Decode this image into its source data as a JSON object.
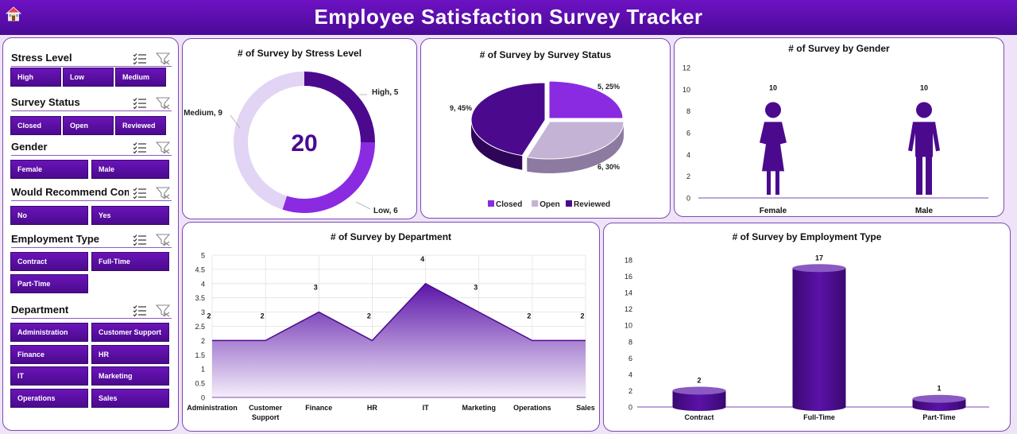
{
  "header": {
    "title": "Employee Satisfaction Survey Tracker"
  },
  "slicers": [
    {
      "title": "Stress Level",
      "items": [
        "High",
        "Low",
        "Medium"
      ]
    },
    {
      "title": "Survey Status",
      "items": [
        "Closed",
        "Open",
        "Reviewed"
      ]
    },
    {
      "title": "Gender",
      "items": [
        "Female",
        "Male"
      ]
    },
    {
      "title": "Would Recommend Com...",
      "items": [
        "No",
        "Yes"
      ]
    },
    {
      "title": "Employment Type",
      "items": [
        "Contract",
        "Full-Time",
        "Part-Time"
      ]
    },
    {
      "title": "Department",
      "items": [
        "Administration",
        "Customer Support",
        "Finance",
        "HR",
        "IT",
        "Marketing",
        "Operations",
        "Sales"
      ]
    }
  ],
  "colors": {
    "header": "#5a0eb0",
    "dark": "#4b0a8e",
    "bright": "#8a2be2",
    "light": "#c4b3d4",
    "pale": "#e2d4f4"
  },
  "chart_data": [
    {
      "type": "pie",
      "title": "# of Survey by Stress Level",
      "center_value": "20",
      "slices": [
        {
          "label": "High",
          "value": 5,
          "data_label": "High, 5",
          "color": "#4b0a8e"
        },
        {
          "label": "Low",
          "value": 6,
          "data_label": "Low, 6",
          "color": "#8a2be2"
        },
        {
          "label": "Medium",
          "value": 9,
          "data_label": "Medium, 9",
          "color": "#e2d4f4"
        }
      ]
    },
    {
      "type": "pie",
      "title": "# of Survey by Survey Status",
      "slices": [
        {
          "label": "Closed",
          "value": 5,
          "data_label": "5, 25%",
          "color": "#8a2be2"
        },
        {
          "label": "Open",
          "value": 6,
          "data_label": "6, 30%",
          "color": "#c4b3d4"
        },
        {
          "label": "Reviewed",
          "value": 9,
          "data_label": "9, 45%",
          "color": "#4b0a8e"
        }
      ],
      "legend": [
        "Closed",
        "Open",
        "Reviewed"
      ],
      "legend_position": "bottom"
    },
    {
      "type": "bar",
      "title": "# of Survey by Gender",
      "categories": [
        "Female",
        "Male"
      ],
      "values": [
        10,
        10
      ],
      "y_ticks": [
        "0",
        "2",
        "4",
        "6",
        "8",
        "10",
        "12"
      ],
      "ylim": [
        0,
        12
      ]
    },
    {
      "type": "area",
      "title": "# of Survey by Department",
      "categories": [
        "Administration",
        "Customer Support",
        "Finance",
        "HR",
        "IT",
        "Marketing",
        "Operations",
        "Sales"
      ],
      "values": [
        2,
        2,
        3,
        2,
        4,
        3,
        2,
        2
      ],
      "y_ticks": [
        "0",
        "0.5",
        "1",
        "1.5",
        "2",
        "2.5",
        "3",
        "3.5",
        "4",
        "4.5",
        "5"
      ],
      "ylim": [
        0,
        5
      ],
      "grid": true
    },
    {
      "type": "bar",
      "title": "# of  Survey by Employment Type",
      "categories": [
        "Contract",
        "Full-Time",
        "Part-Time"
      ],
      "values": [
        2,
        17,
        1
      ],
      "y_ticks": [
        "0",
        "2",
        "4",
        "6",
        "8",
        "10",
        "12",
        "14",
        "16",
        "18"
      ],
      "ylim": [
        0,
        18
      ]
    }
  ]
}
